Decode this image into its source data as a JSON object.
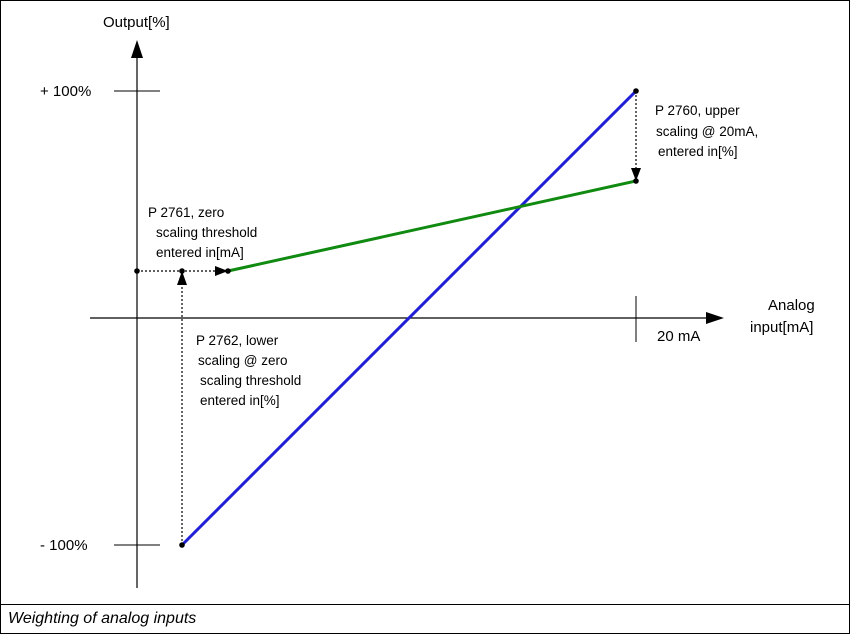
{
  "diagram": {
    "y_axis_label": "Output[%]",
    "x_axis_label_line1": "Analog",
    "x_axis_label_line2": "input[mA]",
    "tick_plus_100": "+ 100%",
    "tick_minus_100": "- 100%",
    "tick_20ma": "20 mA",
    "annotation_p2760": [
      "P 2760,  upper",
      "scaling @ 20mA,",
      "entered in[%]"
    ],
    "annotation_p2761": [
      "P 2761,  zero",
      "scaling threshold",
      "entered in[mA]"
    ],
    "annotation_p2762": [
      "P 2762,  lower",
      "scaling @  zero",
      "scaling threshold",
      "entered in[%]"
    ],
    "colors": {
      "blue_line": "#1f1fd6",
      "green_line": "#118a11",
      "axis": "#000000"
    }
  },
  "caption": "Weighting of analog inputs"
}
